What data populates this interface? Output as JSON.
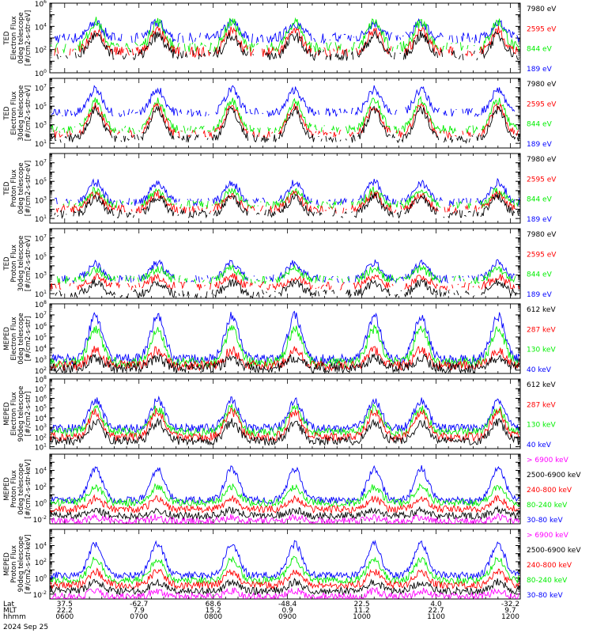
{
  "colors": {
    "black": "#000000",
    "red": "#ff0000",
    "green": "#00ee00",
    "blue": "#0000ff",
    "magenta": "#ff00ff"
  },
  "chart_data": {
    "type": "line",
    "date_label": "2024 Sep 25",
    "x_axis_rows": [
      {
        "label": "Lat",
        "values": [
          "37.5",
          "-62.7",
          "68.6",
          "-48.4",
          "22.5",
          "4.0",
          "-32.2"
        ]
      },
      {
        "label": "MLT",
        "values": [
          "22.2",
          "7.9",
          "15.2",
          "0.9",
          "11.2",
          "22.7",
          "9.7"
        ]
      },
      {
        "label": "hhmm",
        "values": [
          "0600",
          "0700",
          "0800",
          "0900",
          "1000",
          "1100",
          "1200"
        ]
      }
    ],
    "x_tick_times": [
      "0600",
      "0700",
      "0800",
      "0900",
      "1000",
      "1100",
      "1200"
    ],
    "panels": [
      {
        "ylabel": [
          "TED",
          "Electron Flux",
          "0deg telescope",
          "[#/cm2-s-str-eV]"
        ],
        "y_exponents": [
          0,
          2,
          4,
          6
        ],
        "y_log_range": [
          0,
          6
        ],
        "channels": [
          {
            "name": "7980 eV",
            "color": "black",
            "base": 1.5,
            "peak": 3.2
          },
          {
            "name": "2595 eV",
            "color": "red",
            "base": 1.8,
            "peak": 3.6
          },
          {
            "name": "844 eV",
            "color": "green",
            "base": 2.2,
            "peak": 4.4
          },
          {
            "name": "189 eV",
            "color": "blue",
            "base": 3.0,
            "peak": 4.3
          }
        ]
      },
      {
        "ylabel": [
          "TED",
          "Electron Flux",
          "30deg telescope",
          "[#/cm2-s-str-eV]"
        ],
        "y_exponents": [
          1,
          3,
          5,
          7
        ],
        "y_log_range": [
          0.5,
          8
        ],
        "channels": [
          {
            "name": "7980 eV",
            "color": "black",
            "base": 1.5,
            "peak": 4.6
          },
          {
            "name": "2595 eV",
            "color": "red",
            "base": 2.0,
            "peak": 5.0
          },
          {
            "name": "844 eV",
            "color": "green",
            "base": 2.5,
            "peak": 5.6
          },
          {
            "name": "189 eV",
            "color": "blue",
            "base": 4.3,
            "peak": 6.8
          }
        ]
      },
      {
        "ylabel": [
          "TED",
          "Proton Flux",
          "0deg telescope",
          "[#/cm2-s-str-eV]"
        ],
        "y_exponents": [
          1,
          3,
          5,
          7
        ],
        "y_log_range": [
          0.5,
          8
        ],
        "channels": [
          {
            "name": "7980 eV",
            "color": "black",
            "base": 1.5,
            "peak": 3.3
          },
          {
            "name": "2595 eV",
            "color": "red",
            "base": 2.0,
            "peak": 3.6
          },
          {
            "name": "844 eV",
            "color": "green",
            "base": 2.5,
            "peak": 4.0
          },
          {
            "name": "189 eV",
            "color": "blue",
            "base": 2.8,
            "peak": 4.9
          }
        ]
      },
      {
        "ylabel": [
          "TED",
          "Proton Flux",
          "30deg telescope",
          "[#/cm2-s-str-eV]"
        ],
        "y_exponents": [
          1,
          3,
          5,
          7
        ],
        "y_log_range": [
          0.5,
          8
        ],
        "channels": [
          {
            "name": "7980 eV",
            "color": "black",
            "base": 1.0,
            "peak": 2.2
          },
          {
            "name": "2595 eV",
            "color": "red",
            "base": 1.8,
            "peak": 2.8
          },
          {
            "name": "844 eV",
            "color": "green",
            "base": 2.5,
            "peak": 3.7
          },
          {
            "name": "189 eV",
            "color": "blue",
            "base": 2.6,
            "peak": 4.3
          }
        ]
      },
      {
        "ylabel": [
          "MEPED",
          "Electron Flux",
          "0deg telescope",
          "[#/cm2-s-str]"
        ],
        "y_exponents": [
          2,
          3,
          4,
          5,
          6,
          7,
          8
        ],
        "y_log_range": [
          1.7,
          8
        ],
        "channels": [
          {
            "name": "612 keV",
            "color": "black",
            "base": 2.2,
            "peak": 3.1
          },
          {
            "name": "287 keV",
            "color": "red",
            "base": 2.4,
            "peak": 3.8
          },
          {
            "name": "130 keV",
            "color": "green",
            "base": 2.7,
            "peak": 5.7
          },
          {
            "name": "40 keV",
            "color": "blue",
            "base": 3.0,
            "peak": 6.9
          }
        ]
      },
      {
        "ylabel": [
          "MEPED",
          "Electron Flux",
          "90deg telescope",
          "[#/cm2-s-str]"
        ],
        "y_exponents": [
          1,
          2,
          3,
          4,
          5,
          6,
          7,
          8
        ],
        "y_log_range": [
          0.8,
          8
        ],
        "channels": [
          {
            "name": "612 keV",
            "color": "black",
            "base": 1.6,
            "peak": 3.5
          },
          {
            "name": "287 keV",
            "color": "red",
            "base": 2.0,
            "peak": 4.6
          },
          {
            "name": "130 keV",
            "color": "green",
            "base": 2.5,
            "peak": 5.0
          },
          {
            "name": "40 keV",
            "color": "blue",
            "base": 2.9,
            "peak": 5.8
          }
        ]
      },
      {
        "ylabel": [
          "MEPED",
          "Proton Flux",
          "0deg telescope",
          "[#/cm2-s-str-keV]"
        ],
        "y_exponents": [
          -2,
          0,
          2,
          4
        ],
        "y_log_range": [
          -2.6,
          6
        ],
        "channels": [
          {
            "name": "> 6900 keV",
            "color": "magenta",
            "base": -2.3,
            "peak": -1.8
          },
          {
            "name": "2500-6900 keV",
            "color": "black",
            "base": -1.6,
            "peak": -0.9
          },
          {
            "name": "240-800 keV",
            "color": "red",
            "base": -0.8,
            "peak": 0.5
          },
          {
            "name": "80-240 keV",
            "color": "green",
            "base": 0.0,
            "peak": 2.0
          },
          {
            "name": "30-80 keV",
            "color": "blue",
            "base": 0.3,
            "peak": 4.2
          }
        ]
      },
      {
        "ylabel": [
          "MEPED",
          "Proton Flux",
          "90deg telescope",
          "[#/cm2-s-str-keV]"
        ],
        "y_exponents": [
          -2,
          0,
          2,
          4
        ],
        "y_log_range": [
          -2.6,
          6
        ],
        "channels": [
          {
            "name": "> 6900 keV",
            "color": "magenta",
            "base": -2.3,
            "peak": -1.6
          },
          {
            "name": "2500-6900 keV",
            "color": "black",
            "base": -1.6,
            "peak": -0.5
          },
          {
            "name": "240-800 keV",
            "color": "red",
            "base": -0.9,
            "peak": 0.8
          },
          {
            "name": "80-240 keV",
            "color": "green",
            "base": -0.3,
            "peak": 2.3
          },
          {
            "name": "30-80 keV",
            "color": "blue",
            "base": 0.3,
            "peak": 4.2
          }
        ]
      }
    ],
    "event_times": [
      "0625",
      "0715",
      "0815",
      "0906",
      "1010",
      "1048",
      "1150"
    ]
  }
}
